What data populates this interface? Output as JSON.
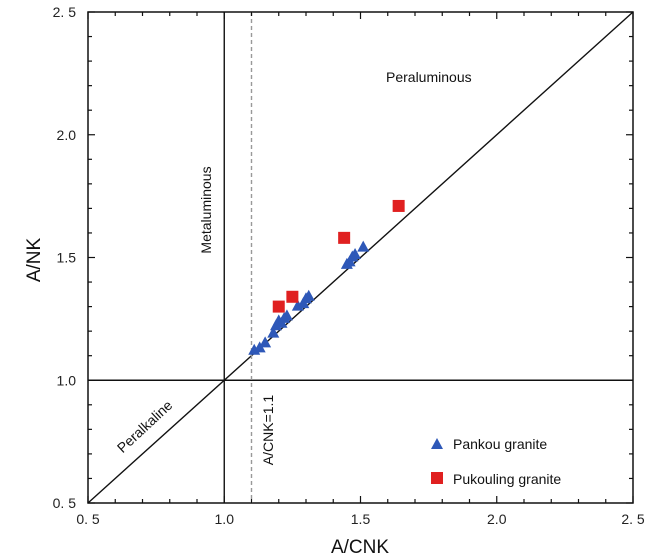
{
  "chart_data": {
    "type": "scatter",
    "xlabel": "A/CNK",
    "ylabel": "A/NK",
    "xlim": [
      0.5,
      2.5
    ],
    "ylim": [
      0.5,
      2.5
    ],
    "x_ticks": [
      0.5,
      1.0,
      1.5,
      2.0,
      2.5
    ],
    "y_ticks": [
      0.5,
      1.0,
      1.5,
      2.0,
      2.5
    ],
    "x_tick_labels": [
      "0. 5",
      "1.0",
      "1.5",
      "2.0",
      "2. 5"
    ],
    "y_tick_labels": [
      "0. 5",
      "1.0",
      "1.5",
      "2.0",
      "2. 5"
    ],
    "grid": false,
    "legend_position": "bottom-right",
    "region_labels": {
      "peraluminous": "Peraluminous",
      "metaluminous": "Metaluminous",
      "peralkaline": "Peralkaline",
      "reference_line": "A/CNK=1.1"
    },
    "reference_lines": {
      "acnk_1_1": 1.1,
      "acnk_1": 1.0,
      "ank_1": 1.0,
      "diagonal": "A/NK = A/CNK"
    },
    "series": [
      {
        "name": "Pankou granite",
        "marker": "triangle",
        "color": "#2E58B8",
        "points": [
          [
            1.11,
            1.12
          ],
          [
            1.13,
            1.13
          ],
          [
            1.15,
            1.15
          ],
          [
            1.18,
            1.19
          ],
          [
            1.19,
            1.22
          ],
          [
            1.2,
            1.24
          ],
          [
            1.21,
            1.23
          ],
          [
            1.22,
            1.25
          ],
          [
            1.23,
            1.26
          ],
          [
            1.27,
            1.3
          ],
          [
            1.29,
            1.31
          ],
          [
            1.3,
            1.33
          ],
          [
            1.31,
            1.34
          ],
          [
            1.45,
            1.47
          ],
          [
            1.46,
            1.48
          ],
          [
            1.47,
            1.5
          ],
          [
            1.48,
            1.51
          ],
          [
            1.51,
            1.54
          ]
        ]
      },
      {
        "name": "Pukouling granite",
        "marker": "square",
        "color": "#E02020",
        "points": [
          [
            1.2,
            1.3
          ],
          [
            1.25,
            1.34
          ],
          [
            1.44,
            1.58
          ],
          [
            1.64,
            1.71
          ]
        ]
      }
    ]
  }
}
